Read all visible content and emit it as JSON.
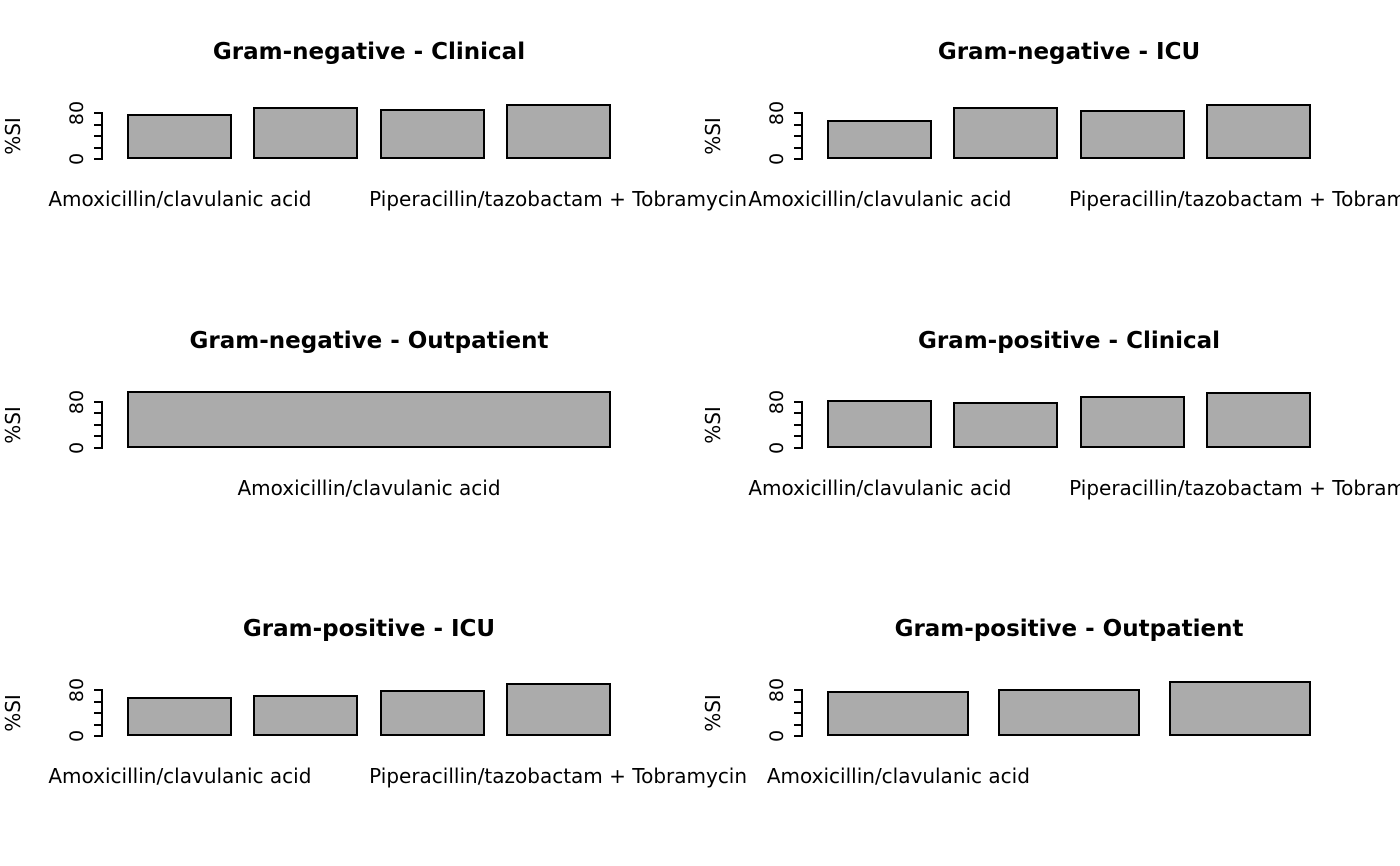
{
  "figure": {
    "background": "#ffffff",
    "text_color": "#000000",
    "bar_fill": "#ababab",
    "bar_border": "#000000"
  },
  "chart_data": [
    {
      "type": "bar",
      "title": "Gram-negative - Clinical",
      "ylabel": "%SI",
      "ylim": [
        0,
        103
      ],
      "yticks": [
        0,
        20,
        40,
        60,
        80
      ],
      "ytick_labels_shown": [
        "0",
        "80"
      ],
      "values": [
        78,
        90,
        87,
        96
      ],
      "visible_bar_labels": [
        {
          "bar_index": 1,
          "label": "Amoxicillin/clavulanic acid"
        },
        {
          "bar_index": 4,
          "label": "Piperacillin/tazobactam + Tobramycin"
        }
      ]
    },
    {
      "type": "bar",
      "title": "Gram-negative - ICU",
      "ylabel": "%SI",
      "ylim": [
        0,
        103
      ],
      "yticks": [
        0,
        20,
        40,
        60,
        80
      ],
      "ytick_labels_shown": [
        "0",
        "80"
      ],
      "values": [
        68,
        90,
        85,
        96
      ],
      "visible_bar_labels": [
        {
          "bar_index": 1,
          "label": "Amoxicillin/clavulanic acid"
        },
        {
          "bar_index": 4,
          "label": "Piperacillin/tazobactam + Tobramycin"
        }
      ]
    },
    {
      "type": "bar",
      "title": "Gram-negative - Outpatient",
      "ylabel": "%SI",
      "ylim": [
        0,
        103
      ],
      "yticks": [
        0,
        20,
        40,
        60,
        80
      ],
      "ytick_labels_shown": [
        "0",
        "80"
      ],
      "values": [
        98
      ],
      "visible_bar_labels": [
        {
          "bar_index": 1,
          "label": "Amoxicillin/clavulanic acid"
        }
      ]
    },
    {
      "type": "bar",
      "title": "Gram-positive - Clinical",
      "ylabel": "%SI",
      "ylim": [
        0,
        103
      ],
      "yticks": [
        0,
        20,
        40,
        60,
        80
      ],
      "ytick_labels_shown": [
        "0",
        "80"
      ],
      "values": [
        82,
        79,
        89,
        96
      ],
      "visible_bar_labels": [
        {
          "bar_index": 1,
          "label": "Amoxicillin/clavulanic acid"
        },
        {
          "bar_index": 4,
          "label": "Piperacillin/tazobactam + Tobramycin"
        }
      ]
    },
    {
      "type": "bar",
      "title": "Gram-positive - ICU",
      "ylabel": "%SI",
      "ylim": [
        0,
        103
      ],
      "yticks": [
        0,
        20,
        40,
        60,
        80
      ],
      "ytick_labels_shown": [
        "0",
        "80"
      ],
      "values": [
        68,
        72,
        80,
        93
      ],
      "visible_bar_labels": [
        {
          "bar_index": 1,
          "label": "Amoxicillin/clavulanic acid"
        },
        {
          "bar_index": 4,
          "label": "Piperacillin/tazobactam + Tobramycin"
        }
      ]
    },
    {
      "type": "bar",
      "title": "Gram-positive - Outpatient",
      "ylabel": "%SI",
      "ylim": [
        0,
        103
      ],
      "yticks": [
        0,
        20,
        40,
        60,
        80
      ],
      "ytick_labels_shown": [
        "0",
        "80"
      ],
      "values": [
        79,
        83,
        97
      ],
      "visible_bar_labels": [
        {
          "bar_index": 1,
          "label": "Amoxicillin/clavulanic acid"
        }
      ]
    }
  ]
}
